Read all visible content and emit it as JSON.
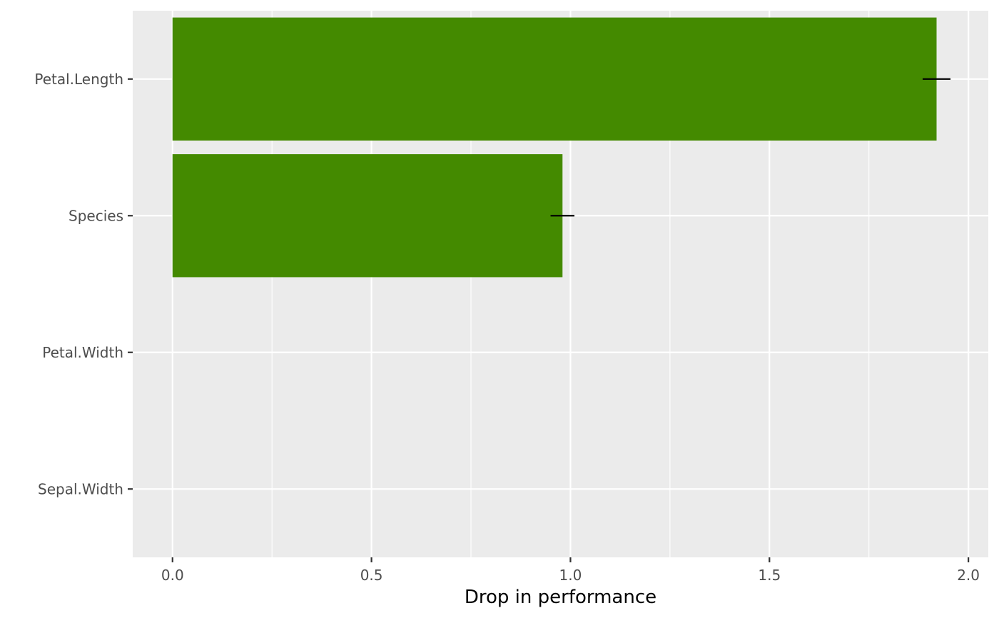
{
  "chart_data": {
    "type": "bar",
    "orientation": "horizontal",
    "categories": [
      "Petal.Length",
      "Species",
      "Petal.Width",
      "Sepal.Width"
    ],
    "values": [
      1.92,
      0.98,
      0,
      0
    ],
    "error_bars": [
      {
        "low": 1.885,
        "high": 1.955
      },
      {
        "low": 0.95,
        "high": 1.01
      },
      null,
      null
    ],
    "xlabel": "Drop in performance",
    "ylabel": "",
    "title": "",
    "xlim": [
      -0.1,
      2.05
    ],
    "x_ticks": [
      0.0,
      0.5,
      1.0,
      1.5,
      2.0
    ],
    "x_tick_labels": [
      "0.0",
      "0.5",
      "1.0",
      "1.5",
      "2.0"
    ],
    "grid": true,
    "legend": "none",
    "colors": {
      "bar": "#448a00",
      "panel_background": "#ebebeb",
      "grid": "#ffffff",
      "error_bar": "#000000"
    }
  }
}
